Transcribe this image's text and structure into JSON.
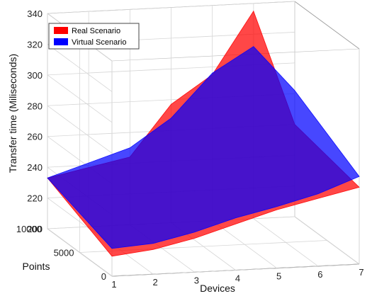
{
  "chart_data": {
    "type": "area",
    "xlabel": "Devices",
    "ylabel": "Points",
    "zlabel": "Transfer time (Miliseconds)",
    "x_ticks": [
      1,
      2,
      3,
      4,
      5,
      6,
      7
    ],
    "y_ticks": [
      0,
      5000,
      10000
    ],
    "z_ticks": [
      200,
      220,
      240,
      260,
      280,
      300,
      320,
      340
    ],
    "xlim": [
      1,
      7
    ],
    "ylim": [
      0,
      10000
    ],
    "zlim": [
      200,
      340
    ],
    "grid": true,
    "legend_position": "top-left",
    "series": [
      {
        "name": "Real Scenario",
        "color": "#ff0000",
        "surface": [
          [
            1,
            0,
            213
          ],
          [
            2,
            0,
            216
          ],
          [
            3,
            0,
            222
          ],
          [
            4,
            0,
            230
          ],
          [
            5,
            0,
            238
          ],
          [
            6,
            0,
            244
          ],
          [
            7,
            0,
            250
          ],
          [
            1,
            10000,
            233
          ],
          [
            3,
            10000,
            244
          ],
          [
            4,
            10000,
            277
          ],
          [
            5,
            10000,
            295
          ],
          [
            6,
            10000,
            335
          ],
          [
            7,
            10000,
            260
          ]
        ]
      },
      {
        "name": "Virtual Scenario",
        "color": "#0000ff",
        "surface": [
          [
            1,
            0,
            218
          ],
          [
            2,
            0,
            220
          ],
          [
            3,
            0,
            226
          ],
          [
            4,
            0,
            234
          ],
          [
            5,
            0,
            240
          ],
          [
            6,
            0,
            247
          ],
          [
            7,
            0,
            257
          ],
          [
            1,
            10000,
            233
          ],
          [
            3,
            10000,
            250
          ],
          [
            4,
            10000,
            268
          ],
          [
            5,
            10000,
            296
          ],
          [
            6,
            10000,
            312
          ],
          [
            7,
            10000,
            282
          ]
        ]
      }
    ]
  }
}
